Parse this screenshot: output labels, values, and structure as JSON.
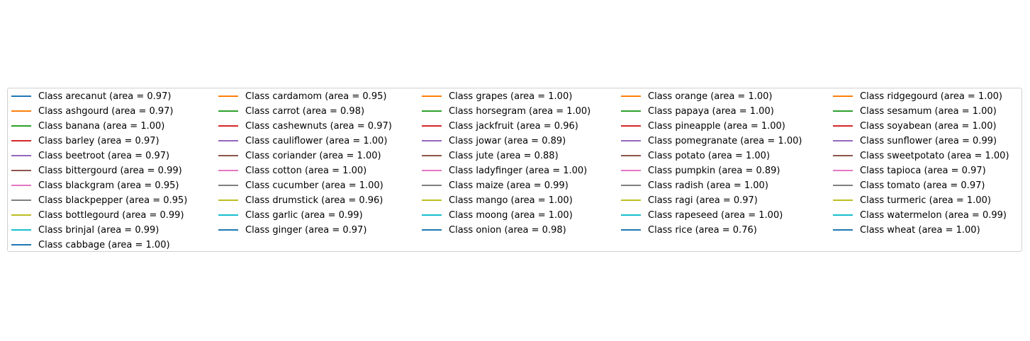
{
  "chart_data": {
    "type": "line",
    "title": "",
    "xlabel": "",
    "ylabel": "",
    "legend_placement": "center",
    "legend_columns": 5,
    "palette": [
      "#1f77b4",
      "#ff7f0e",
      "#2ca02c",
      "#d62728",
      "#9467bd",
      "#8c564b",
      "#e377c2",
      "#7f7f7f",
      "#bcbd22",
      "#17becf"
    ],
    "series": [
      {
        "name": "Class arecanut (area = 0.97)",
        "auc": 0.97
      },
      {
        "name": "Class ashgourd (area = 0.97)",
        "auc": 0.97
      },
      {
        "name": "Class banana (area = 1.00)",
        "auc": 1.0
      },
      {
        "name": "Class barley (area = 0.97)",
        "auc": 0.97
      },
      {
        "name": "Class beetroot (area = 0.97)",
        "auc": 0.97
      },
      {
        "name": "Class bittergourd (area = 0.99)",
        "auc": 0.99
      },
      {
        "name": "Class blackgram (area = 0.95)",
        "auc": 0.95
      },
      {
        "name": "Class blackpepper (area = 0.95)",
        "auc": 0.95
      },
      {
        "name": "Class bottlegourd (area = 0.99)",
        "auc": 0.99
      },
      {
        "name": "Class brinjal (area = 0.99)",
        "auc": 0.99
      },
      {
        "name": "Class cabbage (area = 1.00)",
        "auc": 1.0
      },
      {
        "name": "Class cardamom (area = 0.95)",
        "auc": 0.95
      },
      {
        "name": "Class carrot (area = 0.98)",
        "auc": 0.98
      },
      {
        "name": "Class cashewnuts (area = 0.97)",
        "auc": 0.97
      },
      {
        "name": "Class cauliflower (area = 1.00)",
        "auc": 1.0
      },
      {
        "name": "Class coriander (area = 1.00)",
        "auc": 1.0
      },
      {
        "name": "Class cotton (area = 1.00)",
        "auc": 1.0
      },
      {
        "name": "Class cucumber (area = 1.00)",
        "auc": 1.0
      },
      {
        "name": "Class drumstick (area = 0.96)",
        "auc": 0.96
      },
      {
        "name": "Class garlic (area = 0.99)",
        "auc": 0.99
      },
      {
        "name": "Class ginger (area = 0.97)",
        "auc": 0.97
      },
      {
        "name": "Class grapes (area = 1.00)",
        "auc": 1.0
      },
      {
        "name": "Class horsegram (area = 1.00)",
        "auc": 1.0
      },
      {
        "name": "Class jackfruit (area = 0.96)",
        "auc": 0.96
      },
      {
        "name": "Class jowar (area = 0.89)",
        "auc": 0.89
      },
      {
        "name": "Class jute (area = 0.88)",
        "auc": 0.88
      },
      {
        "name": "Class ladyfinger (area = 1.00)",
        "auc": 1.0
      },
      {
        "name": "Class maize (area = 0.99)",
        "auc": 0.99
      },
      {
        "name": "Class mango (area = 1.00)",
        "auc": 1.0
      },
      {
        "name": "Class moong (area = 1.00)",
        "auc": 1.0
      },
      {
        "name": "Class onion (area = 0.98)",
        "auc": 0.98
      },
      {
        "name": "Class orange (area = 1.00)",
        "auc": 1.0
      },
      {
        "name": "Class papaya (area = 1.00)",
        "auc": 1.0
      },
      {
        "name": "Class pineapple (area = 1.00)",
        "auc": 1.0
      },
      {
        "name": "Class pomegranate (area = 1.00)",
        "auc": 1.0
      },
      {
        "name": "Class potato (area = 1.00)",
        "auc": 1.0
      },
      {
        "name": "Class pumpkin (area = 0.89)",
        "auc": 0.89
      },
      {
        "name": "Class radish (area = 1.00)",
        "auc": 1.0
      },
      {
        "name": "Class ragi (area = 0.97)",
        "auc": 0.97
      },
      {
        "name": "Class rapeseed (area = 1.00)",
        "auc": 1.0
      },
      {
        "name": "Class rice (area = 0.76)",
        "auc": 0.76
      },
      {
        "name": "Class ridgegourd (area = 1.00)",
        "auc": 1.0
      },
      {
        "name": "Class sesamum (area = 1.00)",
        "auc": 1.0
      },
      {
        "name": "Class soyabean (area = 1.00)",
        "auc": 1.0
      },
      {
        "name": "Class sunflower (area = 0.99)",
        "auc": 0.99
      },
      {
        "name": "Class sweetpotato (area = 1.00)",
        "auc": 1.0
      },
      {
        "name": "Class tapioca (area = 0.97)",
        "auc": 0.97
      },
      {
        "name": "Class tomato (area = 0.97)",
        "auc": 0.97
      },
      {
        "name": "Class turmeric (area = 1.00)",
        "auc": 1.0
      },
      {
        "name": "Class watermelon (area = 0.99)",
        "auc": 0.99
      },
      {
        "name": "Class wheat (area = 1.00)",
        "auc": 1.0
      }
    ]
  }
}
